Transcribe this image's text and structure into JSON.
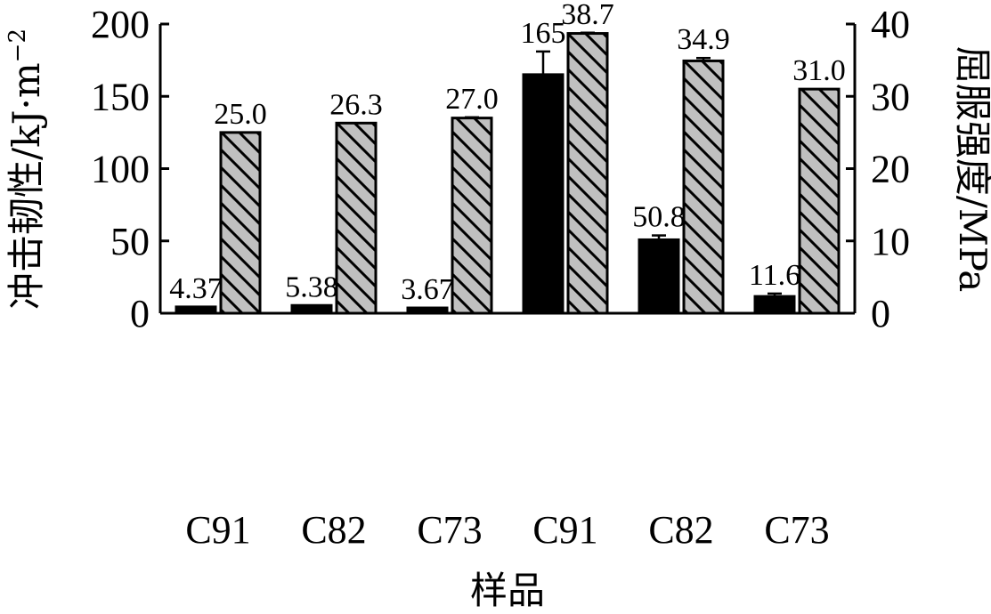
{
  "chart_data": {
    "type": "bar",
    "categories": [
      "C91",
      "C82",
      "C73",
      "C91",
      "C82",
      "C73"
    ],
    "xlabel": "样品",
    "ylabel_left": "冲击韧性/kJ·m⁻²",
    "ylabel_left_parts": {
      "main": "冲击韧性/kJ",
      "dot": "·",
      "unit": "m",
      "sup": "−2"
    },
    "ylabel_right": "屈服强度/MPa",
    "ylim_left": [
      0,
      200
    ],
    "ylim_right": [
      0,
      40
    ],
    "yticks_left": [
      0,
      50,
      100,
      150,
      200
    ],
    "yticks_right": [
      0,
      10,
      20,
      30,
      40
    ],
    "grid": false,
    "legend": "none",
    "series": [
      {
        "axis": "left",
        "fill": "#000000",
        "pattern": "solid",
        "values": [
          4.37,
          5.38,
          3.67,
          165,
          50.8,
          11.6
        ],
        "errors": [
          0,
          0,
          0,
          16,
          3,
          2
        ],
        "labels": [
          "4.37",
          "5.38",
          "3.67",
          "165",
          "50.8",
          "11.6"
        ]
      },
      {
        "axis": "right",
        "fill": "#c0c0c0",
        "pattern": "diagonal-hatch",
        "values": [
          25.0,
          26.3,
          27.0,
          38.7,
          34.9,
          31.0
        ],
        "errors": [
          0,
          0,
          0.1,
          0.1,
          0.4,
          0
        ],
        "labels": [
          "25.0",
          "26.3",
          "27.0",
          "38.7",
          "34.9",
          "31.0"
        ]
      }
    ]
  }
}
